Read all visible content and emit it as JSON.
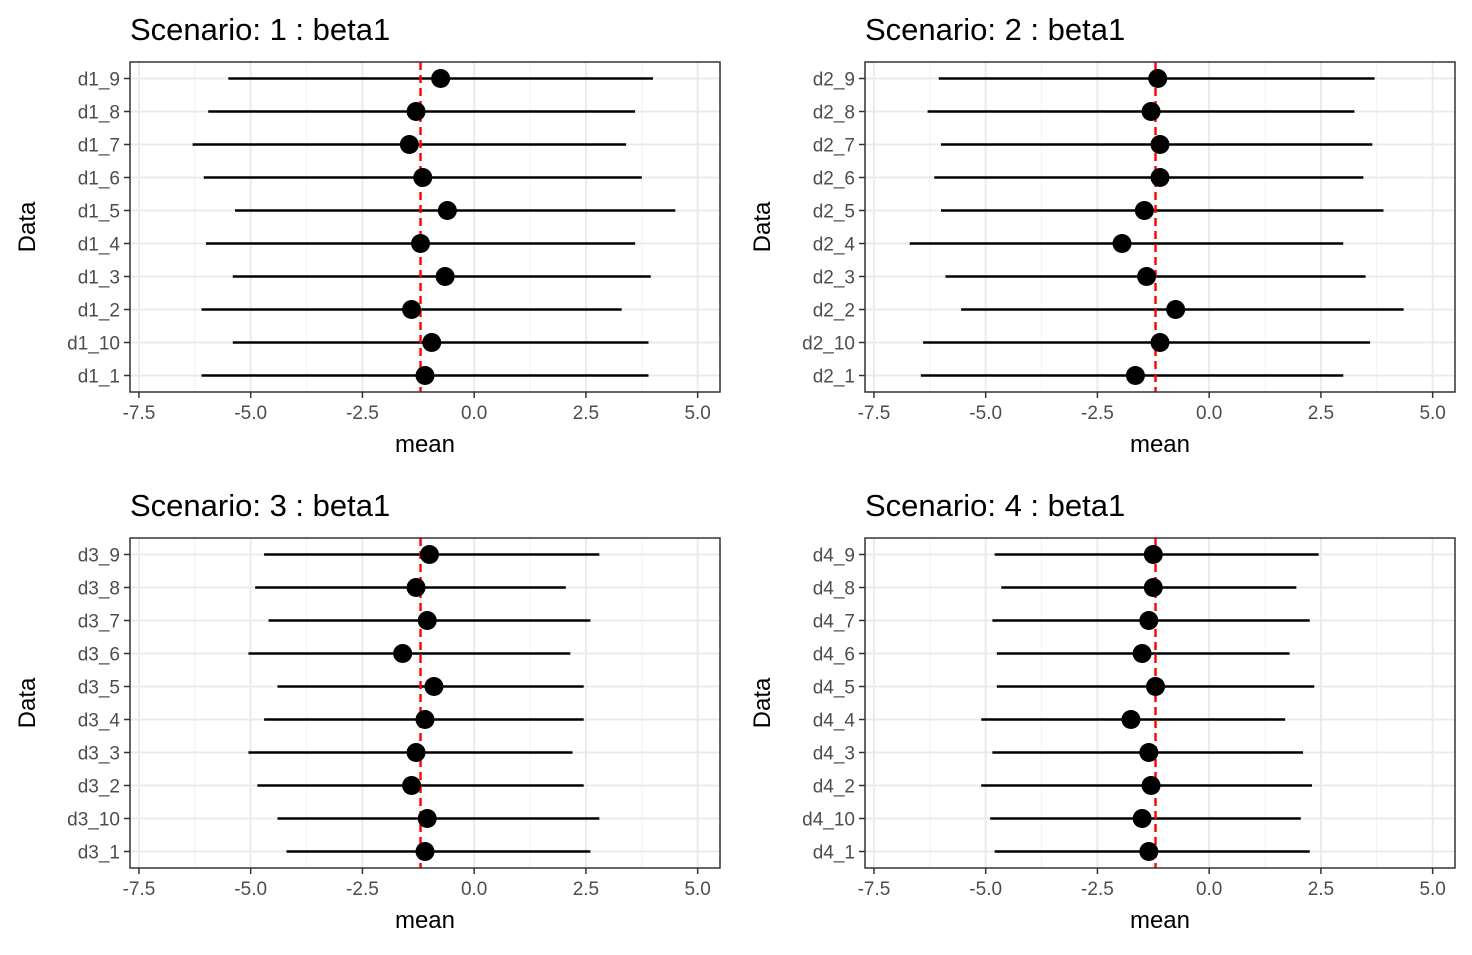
{
  "figure": {
    "description_colors": {
      "point": "#000000",
      "interval": "#000000",
      "reference_line": "#ff0000",
      "panel_border": "#333333",
      "grid_major": "#ebebeb",
      "grid_minor": "#f5f5f5",
      "tick_label": "#4d4d4d"
    }
  },
  "chart_data": [
    {
      "type": "forest",
      "title": "Scenario: 1 : beta1",
      "xlabel": "mean",
      "ylabel": "Data",
      "xlim": [
        -7.7,
        5.5
      ],
      "xticks": [
        -7.5,
        -5.0,
        -2.5,
        0.0,
        2.5,
        5.0
      ],
      "xtick_labels": [
        "-7.5",
        "-5.0",
        "-2.5",
        "0.0",
        "2.5",
        "5.0"
      ],
      "reference_line": -1.2,
      "grid": true,
      "categories": [
        "d1_9",
        "d1_8",
        "d1_7",
        "d1_6",
        "d1_5",
        "d1_4",
        "d1_3",
        "d1_2",
        "d1_10",
        "d1_1"
      ],
      "mean": [
        -0.75,
        -1.3,
        -1.45,
        -1.15,
        -0.6,
        -1.2,
        -0.65,
        -1.4,
        -0.95,
        -1.1
      ],
      "lower": [
        -5.5,
        -5.95,
        -6.3,
        -6.05,
        -5.35,
        -6.0,
        -5.4,
        -6.1,
        -5.4,
        -6.1
      ],
      "upper": [
        4.0,
        3.6,
        3.4,
        3.75,
        4.5,
        3.6,
        3.95,
        3.3,
        3.9,
        3.9
      ]
    },
    {
      "type": "forest",
      "title": "Scenario: 2 : beta1",
      "xlabel": "mean",
      "ylabel": "Data",
      "xlim": [
        -7.7,
        5.5
      ],
      "xticks": [
        -7.5,
        -5.0,
        -2.5,
        0.0,
        2.5,
        5.0
      ],
      "xtick_labels": [
        "-7.5",
        "-5.0",
        "-2.5",
        "0.0",
        "2.5",
        "5.0"
      ],
      "reference_line": -1.2,
      "grid": true,
      "categories": [
        "d2_9",
        "d2_8",
        "d2_7",
        "d2_6",
        "d2_5",
        "d2_4",
        "d2_3",
        "d2_2",
        "d2_10",
        "d2_1"
      ],
      "mean": [
        -1.15,
        -1.3,
        -1.1,
        -1.1,
        -1.45,
        -1.95,
        -1.4,
        -0.75,
        -1.1,
        -1.65
      ],
      "lower": [
        -6.05,
        -6.3,
        -6.0,
        -6.15,
        -6.0,
        -6.7,
        -5.9,
        -5.55,
        -6.4,
        -6.45
      ],
      "upper": [
        3.7,
        3.25,
        3.65,
        3.45,
        3.9,
        3.0,
        3.5,
        4.35,
        3.6,
        3.0
      ]
    },
    {
      "type": "forest",
      "title": "Scenario: 3 : beta1",
      "xlabel": "mean",
      "ylabel": "Data",
      "xlim": [
        -7.7,
        5.5
      ],
      "xticks": [
        -7.5,
        -5.0,
        -2.5,
        0.0,
        2.5,
        5.0
      ],
      "xtick_labels": [
        "-7.5",
        "-5.0",
        "-2.5",
        "0.0",
        "2.5",
        "5.0"
      ],
      "reference_line": -1.2,
      "grid": true,
      "categories": [
        "d3_9",
        "d3_8",
        "d3_7",
        "d3_6",
        "d3_5",
        "d3_4",
        "d3_3",
        "d3_2",
        "d3_10",
        "d3_1"
      ],
      "mean": [
        -1.0,
        -1.3,
        -1.05,
        -1.6,
        -0.9,
        -1.1,
        -1.3,
        -1.4,
        -1.05,
        -1.1
      ],
      "lower": [
        -4.7,
        -4.9,
        -4.6,
        -5.05,
        -4.4,
        -4.7,
        -5.05,
        -4.85,
        -4.4,
        -4.2
      ],
      "upper": [
        2.8,
        2.05,
        2.6,
        2.15,
        2.45,
        2.45,
        2.2,
        2.45,
        2.8,
        2.6
      ]
    },
    {
      "type": "forest",
      "title": "Scenario: 4 : beta1",
      "xlabel": "mean",
      "ylabel": "Data",
      "xlim": [
        -7.7,
        5.5
      ],
      "xticks": [
        -7.5,
        -5.0,
        -2.5,
        0.0,
        2.5,
        5.0
      ],
      "xtick_labels": [
        "-7.5",
        "-5.0",
        "-2.5",
        "0.0",
        "2.5",
        "5.0"
      ],
      "reference_line": -1.2,
      "grid": true,
      "categories": [
        "d4_9",
        "d4_8",
        "d4_7",
        "d4_6",
        "d4_5",
        "d4_4",
        "d4_3",
        "d4_2",
        "d4_10",
        "d4_1"
      ],
      "mean": [
        -1.25,
        -1.25,
        -1.35,
        -1.5,
        -1.2,
        -1.75,
        -1.35,
        -1.3,
        -1.5,
        -1.35
      ],
      "lower": [
        -4.8,
        -4.65,
        -4.85,
        -4.75,
        -4.75,
        -5.1,
        -4.85,
        -5.1,
        -4.9,
        -4.8
      ],
      "upper": [
        2.45,
        1.95,
        2.25,
        1.8,
        2.35,
        1.7,
        2.1,
        2.3,
        2.05,
        2.25
      ]
    }
  ]
}
